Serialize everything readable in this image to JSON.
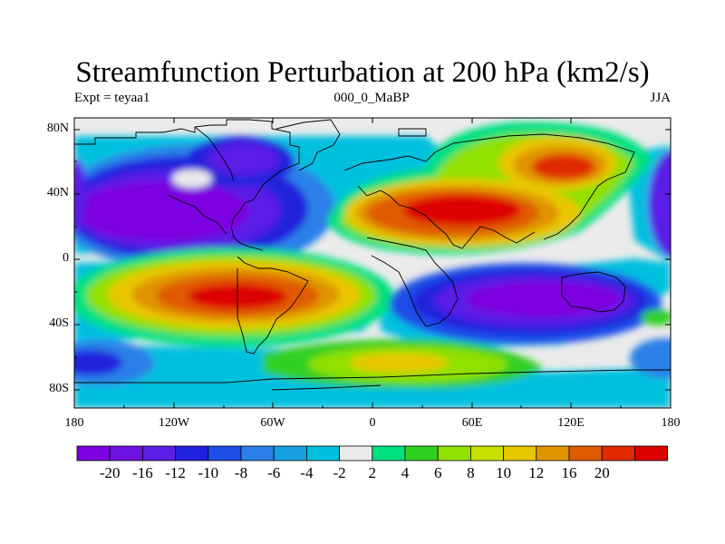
{
  "title": "Streamfunction Perturbation at 200 hPa (km2/s)",
  "subtitle_left": "Expt = teyaa1",
  "subtitle_center": "000_0_MaBP",
  "subtitle_right": "JJA",
  "lat_labels": [
    "80N",
    "40N",
    "0",
    "40S",
    "80S"
  ],
  "lon_labels": [
    "180",
    "120W",
    "60W",
    "0",
    "60E",
    "120E",
    "180"
  ],
  "colorbar": {
    "colors": [
      "#7d00e0",
      "#6e10e0",
      "#5a1ee6",
      "#2020dd",
      "#1e4ee8",
      "#2a80e8",
      "#16a0e0",
      "#00c0e0",
      "#ebebeb",
      "#00e080",
      "#30d020",
      "#90e000",
      "#c8e000",
      "#e8c800",
      "#e09400",
      "#e05a00",
      "#e02a00",
      "#dd0000"
    ],
    "labels": [
      "-20",
      "-16",
      "-12",
      "-10",
      "-8",
      "-6",
      "-4",
      "-2",
      "2",
      "4",
      "6",
      "8",
      "10",
      "12",
      "16",
      "20"
    ]
  }
}
